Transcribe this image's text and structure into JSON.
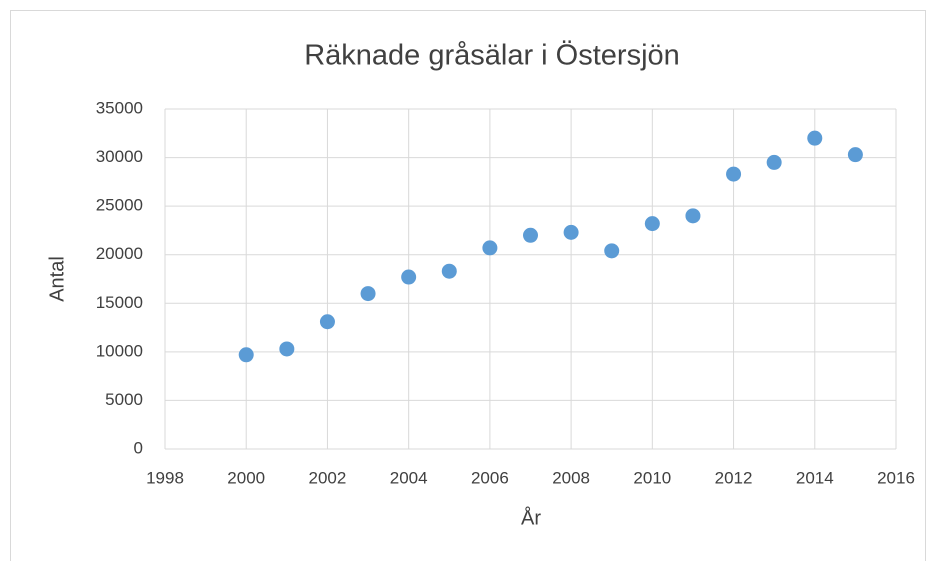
{
  "chart_data": {
    "type": "scatter",
    "title": "Räknade gråsälar i Östersjön",
    "x_label": "År",
    "y_label": "Antal",
    "x": [
      2000,
      2001,
      2002,
      2003,
      2004,
      2005,
      2006,
      2007,
      2008,
      2009,
      2010,
      2011,
      2012,
      2013,
      2014,
      2015
    ],
    "values": [
      9700,
      10300,
      13100,
      16000,
      17700,
      18300,
      20700,
      22000,
      22300,
      20400,
      23200,
      24000,
      28300,
      29500,
      32000,
      30300
    ],
    "color": "#5b9bd5",
    "xlim": [
      1998,
      2016
    ],
    "xticks": [
      1998,
      2000,
      2002,
      2004,
      2006,
      2008,
      2010,
      2012,
      2014,
      2016
    ],
    "ylim": [
      0,
      35000
    ],
    "yticks": [
      0,
      5000,
      10000,
      15000,
      20000,
      25000,
      30000,
      35000
    ],
    "grid": true
  }
}
